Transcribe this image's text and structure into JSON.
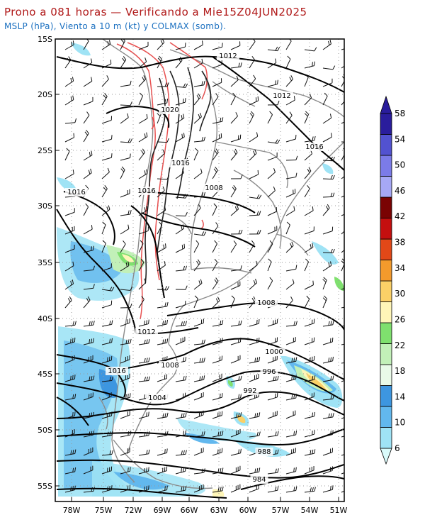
{
  "header": {
    "title": "Prono a 081 horas — Verificando a Mie15Z04JUN2025",
    "subtitle": "MSLP (hPa), Viento a 10 m (kt) y COLMAX (somb)."
  },
  "map": {
    "lat_labels": [
      "15S",
      "20S",
      "25S",
      "30S",
      "35S",
      "40S",
      "45S",
      "50S",
      "55S"
    ],
    "lon_labels": [
      "78W",
      "75W",
      "72W",
      "69W",
      "66W",
      "63W",
      "60W",
      "57W",
      "54W",
      "51W"
    ],
    "isobar_labels": [
      {
        "text": "1012"
      },
      {
        "text": "1012"
      },
      {
        "text": "1020"
      },
      {
        "text": "1016"
      },
      {
        "text": "1016"
      },
      {
        "text": "1016"
      },
      {
        "text": "1008"
      },
      {
        "text": "1016"
      },
      {
        "text": "1008"
      },
      {
        "text": "1012"
      },
      {
        "text": "1008"
      },
      {
        "text": "1000"
      },
      {
        "text": "996"
      },
      {
        "text": "1016"
      },
      {
        "text": "992"
      },
      {
        "text": "1004"
      },
      {
        "text": "988"
      },
      {
        "text": "984"
      }
    ]
  },
  "colorbar": {
    "levels": [
      "6",
      "10",
      "14",
      "18",
      "22",
      "26",
      "30",
      "34",
      "38",
      "42",
      "46",
      "50",
      "54",
      "58"
    ],
    "colors": [
      "#d9fbfb",
      "#9fe3f5",
      "#62b8ee",
      "#3d96e0",
      "#e9fae8",
      "#c2f0b8",
      "#7fe06e",
      "#fff6b8",
      "#fbd067",
      "#f39a2c",
      "#e24818",
      "#c40f0f",
      "#7a0303",
      "#a6a8f6",
      "#7b7be8",
      "#5252d0",
      "#2a1d9c"
    ]
  }
}
